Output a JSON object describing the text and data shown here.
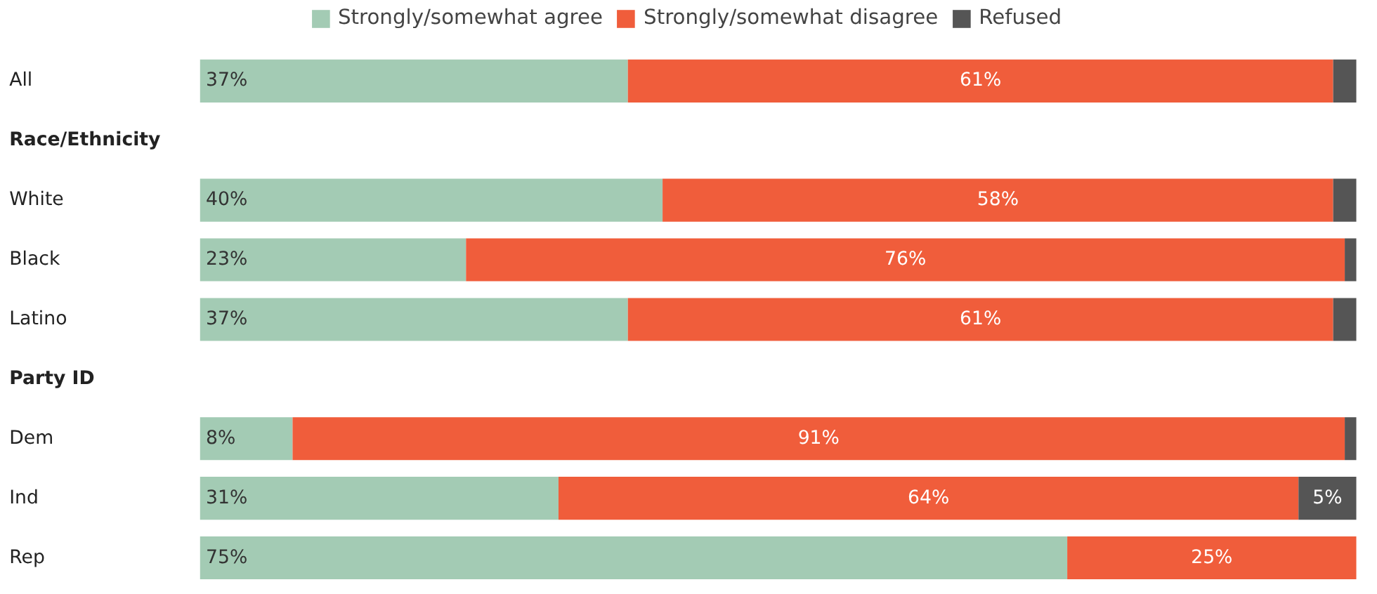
{
  "chart_data": {
    "type": "bar",
    "orientation": "horizontal",
    "stacked": true,
    "legend": "top",
    "categories": [
      "All",
      "Race/Ethnicity",
      "White",
      "Black",
      "Latino",
      "Party ID",
      "Dem",
      "Ind",
      "Rep"
    ],
    "series": [
      {
        "name": "Strongly/somewhat agree",
        "color": "#a3cbb4",
        "values": [
          37,
          null,
          40,
          23,
          37,
          null,
          8,
          31,
          75
        ],
        "value_labels": [
          "37%",
          null,
          "40%",
          "23%",
          "37%",
          null,
          "8%",
          "31%",
          "75%"
        ]
      },
      {
        "name": "Strongly/somewhat disagree",
        "color": "#f05d3b",
        "values": [
          61,
          null,
          58,
          76,
          61,
          null,
          91,
          64,
          25
        ],
        "value_labels": [
          "61%",
          null,
          "58%",
          "76%",
          "61%",
          null,
          "91%",
          "64%",
          "25%"
        ]
      },
      {
        "name": "Refused",
        "color": "#555555",
        "values": [
          2,
          null,
          2,
          1,
          2,
          null,
          1,
          5,
          0
        ],
        "value_labels": [
          null,
          null,
          null,
          null,
          null,
          null,
          null,
          "5%",
          null
        ]
      }
    ]
  }
}
